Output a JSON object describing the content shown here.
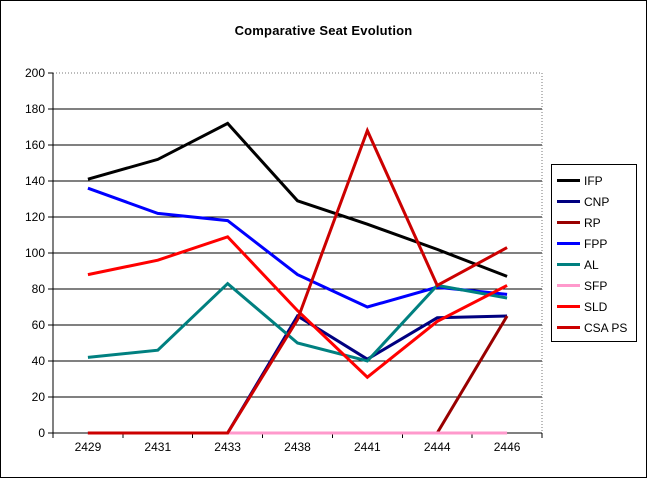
{
  "chart_data": {
    "type": "line",
    "title": "Comparative Seat Evolution",
    "categories": [
      "2429",
      "2431",
      "2433",
      "2438",
      "2441",
      "2444",
      "2446"
    ],
    "series": [
      {
        "name": "IFP",
        "color": "#000000",
        "values": [
          141,
          152,
          172,
          129,
          116,
          102,
          87
        ]
      },
      {
        "name": "CNP",
        "color": "#000080",
        "values": [
          0,
          0,
          0,
          65,
          41,
          64,
          65
        ]
      },
      {
        "name": "RP",
        "color": "#990000",
        "values": [
          0,
          0,
          0,
          0,
          0,
          0,
          65
        ]
      },
      {
        "name": "FPP",
        "color": "#0000FF",
        "values": [
          136,
          122,
          118,
          88,
          70,
          81,
          77
        ]
      },
      {
        "name": "AL",
        "color": "#008080",
        "values": [
          42,
          46,
          83,
          50,
          40,
          82,
          75
        ]
      },
      {
        "name": "SFP",
        "color": "#FF99CC",
        "values": [
          0,
          0,
          0,
          0,
          0,
          0,
          0
        ]
      },
      {
        "name": "SLD",
        "color": "#FF0000",
        "values": [
          88,
          96,
          109,
          68,
          31,
          62,
          82
        ]
      },
      {
        "name": "CSA PS",
        "color": "#CC0000",
        "values": [
          0,
          0,
          0,
          63,
          168,
          82,
          103
        ]
      }
    ],
    "xlabel": "",
    "ylabel": "",
    "ylim": [
      0,
      200
    ],
    "ytick_step": 20,
    "yticks": [
      "0",
      "20",
      "40",
      "60",
      "80",
      "100",
      "120",
      "140",
      "160",
      "180",
      "200"
    ],
    "grid": true,
    "legend_position": "right"
  }
}
